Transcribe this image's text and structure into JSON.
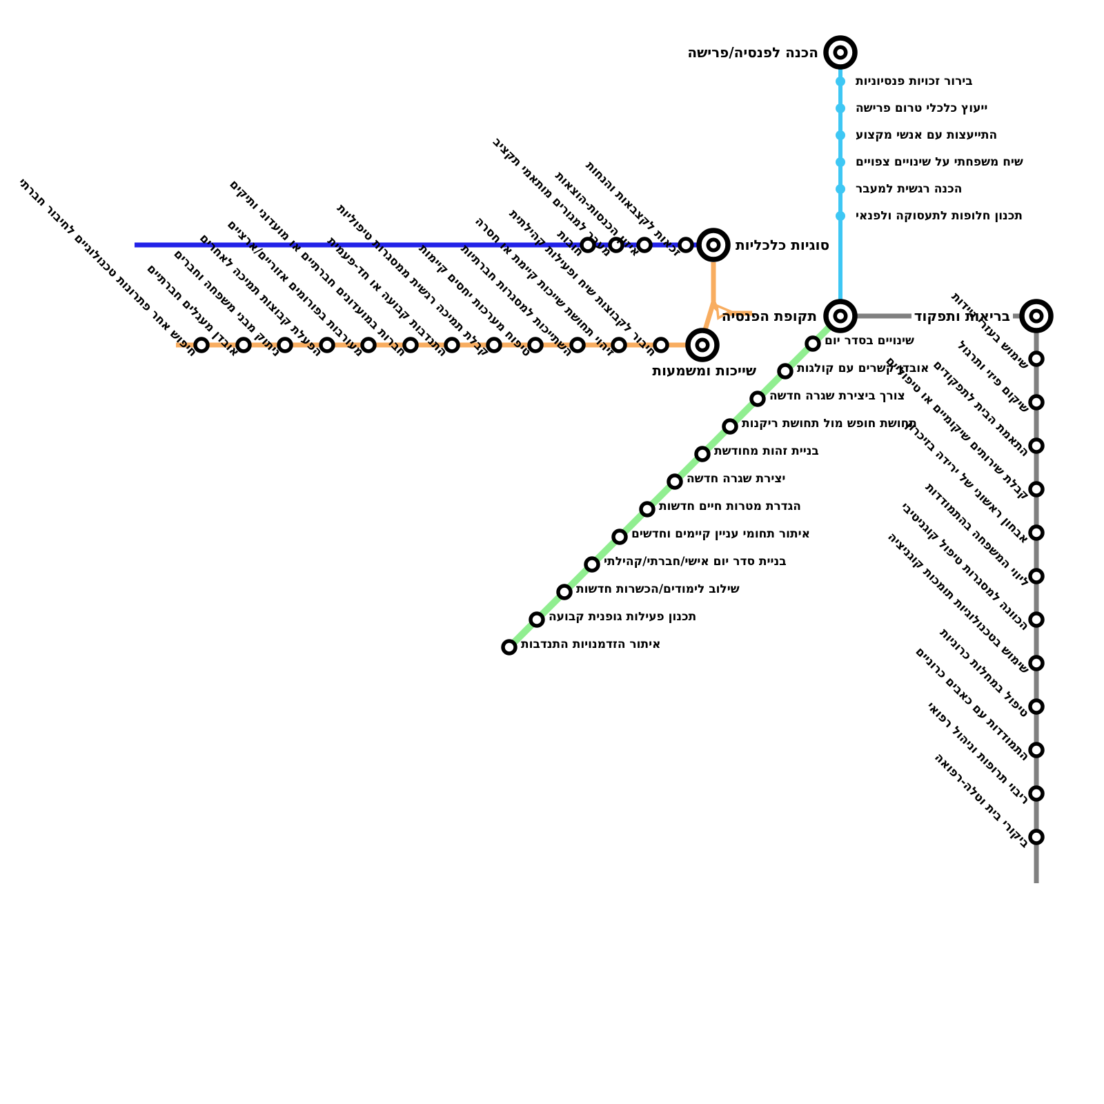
{
  "map": {
    "terminals": {
      "preparation": "הכנה לפנסיה/פרישה",
      "economic": "סוגיות כלכליות",
      "belonging": "שייכות ומשמעות",
      "pension_period": "תקופת הפנסיה",
      "health": "בריאות ותפקוד"
    },
    "lines": {
      "cyan": {
        "color": "#3EC7F4",
        "stops": [
          "בירור זכויות פנסיוניות",
          "ייעוץ כלכלי טרום פרישה",
          "התייעצות עם אנשי מקצוע",
          "שיח משפחתי על שינויים צפויים",
          "הכנה רגשית למעבר",
          "תכנון חלופות לתעסוקה ולפנאי"
        ]
      },
      "blue": {
        "color": "#2222E8",
        "stops": [
          "חובות",
          "מעבר למגורים מותאמי תקציב",
          "איזון הכנסות-הוצאות",
          "זכאות לקצבאות והנחות"
        ]
      },
      "orange": {
        "color": "#F8AD60",
        "stops": [
          "חיפוש אחר פתרונות טכנולוגיים לחיבור חברתי",
          "אובדן מעגלים חברתיים",
          "ניתוק מבני משפחה וחברים",
          "הפעלת קבוצות תמיכה לאחרים",
          "מעורבות בפורומים אזוריים/ארציים",
          "חברות במועדונים חברתיים או מועדוני ותיקים",
          "התנדבות קבועה או חד-פעמית",
          "קבלת תמיכה רגשית ממסגרות טיפוליות",
          "טיפוח מערכות יחסים קיימות",
          "השתייכות למסגרות חברתיות",
          "זיהוי תחושת שייכות קיימת או חסרה",
          "חיבור לקבוצות שיח ופעילות קהילתית"
        ]
      },
      "green": {
        "color": "#90EE90",
        "stops": [
          "שינויים בסדר יום",
          "אובדן קשרים עם קולגות",
          "צורך ביצירת שגרה חדשה",
          "תחושת חופש מול תחושת ריקנות",
          "בניית זהות מחודשת",
          "יצירת שגרה חדשה",
          "הגדרת מטרות חיים חדשות",
          "איתור תחומי עניין קיימים וחדשים",
          "בניית סדר יום אישי/חברתי/קהילתי",
          "שילוב לימודים/הכשרות חדשות",
          "תכנון פעילות גופנית קבועה",
          "איתור הזדמנויות התנדבות"
        ]
      },
      "gray": {
        "color": "#808080",
        "stops": [
          "שימוש בעזרי ניידות",
          "שיקום פיזי ותרגול",
          "התאמת הבית לתפקודים",
          "קבלת שירותים שיקומיים או טיפוליים",
          "אבחון ראשוני של ירידה בזיכרון",
          "ליווי המשפחה בהתמודדות",
          "הכוונה למסגרות טיפול קוגניטיבי",
          "שימוש בטכנולוגיות תומכות קוגניציה",
          "טיפול במחלות כרוניות",
          "התמודדות עם כאבים כרוניים",
          "ריבוי תרופות וניהול רפואי",
          "ביקורי בית וטלה-רפואה"
        ]
      }
    }
  }
}
